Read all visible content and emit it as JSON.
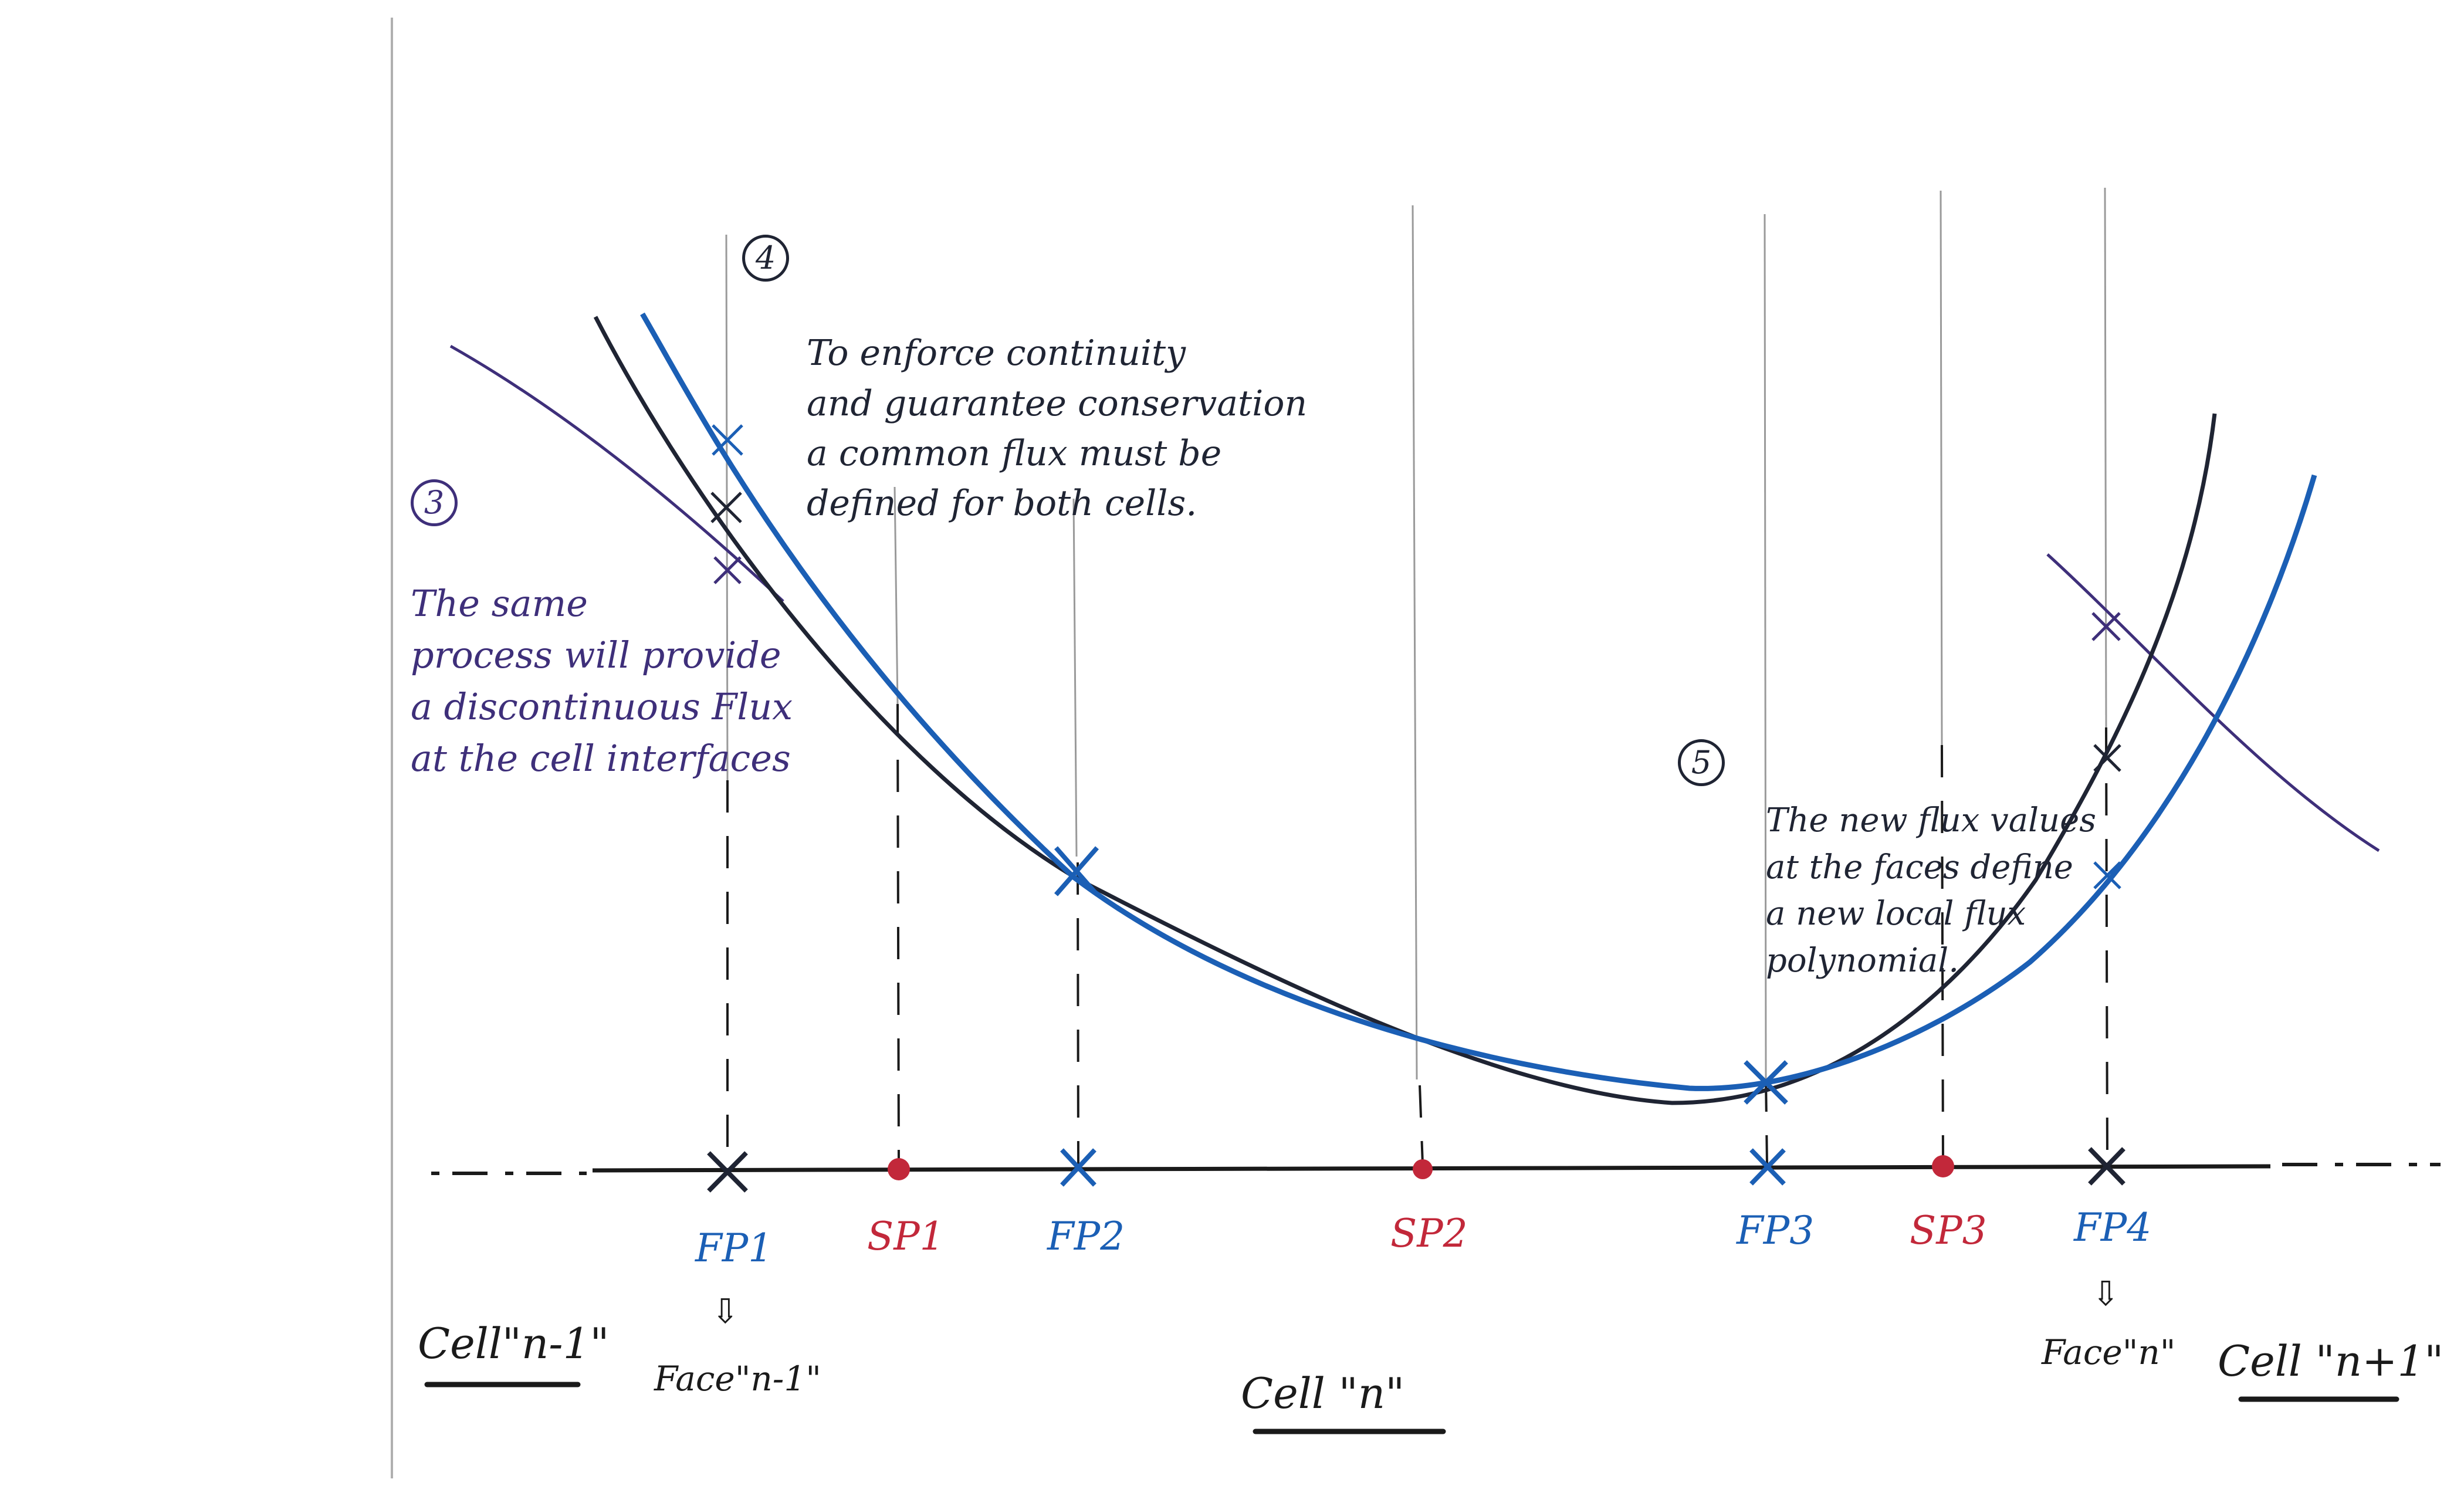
{
  "colors": {
    "ink": "#1f2433",
    "blue": "#1b5fb5",
    "purple": "#3e2f7a",
    "red": "#c2283a",
    "grid": "#9a9a9a"
  },
  "notes": {
    "n3": {
      "number": "3",
      "text": "The same\nprocess will provide\na discontinuous Flux\nat the cell interfaces"
    },
    "n4": {
      "number": "4",
      "text": "To enforce continuity\nand guarantee conservation\na common flux must be\ndefined for both cells."
    },
    "n5": {
      "number": "5",
      "text": "The new flux values\nat the faces define\na new local flux\npolynomial."
    }
  },
  "points": {
    "fp1": "FP1",
    "sp1": "SP1",
    "fp2": "FP2",
    "sp2": "SP2",
    "fp3": "FP3",
    "sp3": "SP3",
    "fp4": "FP4"
  },
  "cells": {
    "prev": "Cell\"n-1\"",
    "current": "Cell \"n\"",
    "next": "Cell \"n+1\""
  },
  "faces": {
    "left": "Face\"n-1\"",
    "right": "Face\"n\""
  },
  "arrow_symbol": "⇩"
}
